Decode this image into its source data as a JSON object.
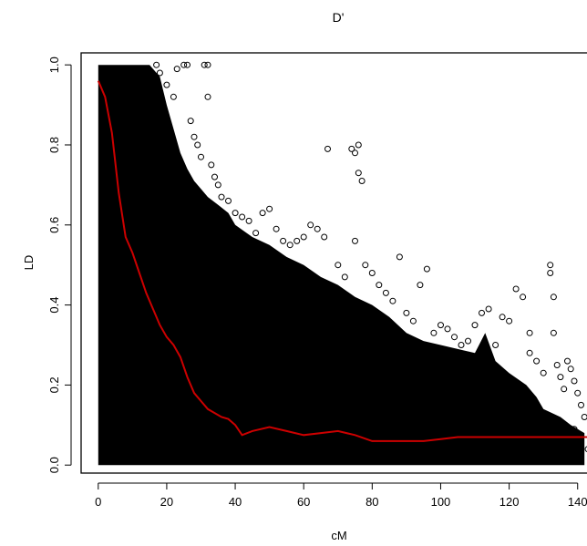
{
  "chart_data": {
    "type": "scatter",
    "title": "D'",
    "xlabel": "cM",
    "ylabel": "LD",
    "xlim": [
      -5,
      143
    ],
    "ylim": [
      -0.02,
      1.03
    ],
    "x_ticks": [
      0,
      20,
      40,
      60,
      80,
      100,
      120,
      140
    ],
    "x_tick_labels": [
      "0",
      "20",
      "40",
      "60",
      "80",
      "100",
      "120",
      "140"
    ],
    "y_ticks": [
      0.0,
      0.2,
      0.4,
      0.6,
      0.8,
      1.0
    ],
    "y_tick_labels": [
      "0.0",
      "0.2",
      "0.4",
      "0.6",
      "0.8",
      "1.0"
    ],
    "grid": false,
    "point_color": "#000000",
    "line_color": "#cc0000",
    "scatter_envelope": [
      [
        0,
        1.0
      ],
      [
        15,
        1.0
      ],
      [
        18,
        0.97
      ],
      [
        20,
        0.9
      ],
      [
        22,
        0.84
      ],
      [
        24,
        0.78
      ],
      [
        26,
        0.74
      ],
      [
        28,
        0.71
      ],
      [
        30,
        0.69
      ],
      [
        32,
        0.67
      ],
      [
        35,
        0.65
      ],
      [
        38,
        0.63
      ],
      [
        40,
        0.6
      ],
      [
        45,
        0.57
      ],
      [
        50,
        0.55
      ],
      [
        55,
        0.52
      ],
      [
        60,
        0.5
      ],
      [
        65,
        0.47
      ],
      [
        70,
        0.45
      ],
      [
        75,
        0.42
      ],
      [
        80,
        0.4
      ],
      [
        85,
        0.37
      ],
      [
        90,
        0.33
      ],
      [
        95,
        0.31
      ],
      [
        100,
        0.3
      ],
      [
        105,
        0.29
      ],
      [
        110,
        0.28
      ],
      [
        113,
        0.33
      ],
      [
        116,
        0.26
      ],
      [
        120,
        0.23
      ],
      [
        125,
        0.2
      ],
      [
        128,
        0.17
      ],
      [
        130,
        0.14
      ],
      [
        135,
        0.12
      ],
      [
        138,
        0.1
      ],
      [
        142,
        0.08
      ]
    ],
    "outlier_points": [
      [
        17,
        1.0
      ],
      [
        18,
        0.98
      ],
      [
        20,
        0.95
      ],
      [
        22,
        0.92
      ],
      [
        23,
        0.99
      ],
      [
        25,
        1.0
      ],
      [
        26,
        1.0
      ],
      [
        27,
        0.86
      ],
      [
        28,
        0.82
      ],
      [
        29,
        0.8
      ],
      [
        30,
        0.77
      ],
      [
        31,
        1.0
      ],
      [
        32,
        1.0
      ],
      [
        32,
        0.92
      ],
      [
        33,
        0.75
      ],
      [
        34,
        0.72
      ],
      [
        35,
        0.7
      ],
      [
        36,
        0.67
      ],
      [
        38,
        0.66
      ],
      [
        40,
        0.63
      ],
      [
        42,
        0.62
      ],
      [
        44,
        0.61
      ],
      [
        46,
        0.58
      ],
      [
        48,
        0.63
      ],
      [
        50,
        0.64
      ],
      [
        52,
        0.59
      ],
      [
        54,
        0.56
      ],
      [
        56,
        0.55
      ],
      [
        58,
        0.56
      ],
      [
        60,
        0.57
      ],
      [
        62,
        0.6
      ],
      [
        64,
        0.59
      ],
      [
        66,
        0.57
      ],
      [
        67,
        0.79
      ],
      [
        70,
        0.5
      ],
      [
        72,
        0.47
      ],
      [
        74,
        0.79
      ],
      [
        75,
        0.78
      ],
      [
        76,
        0.8
      ],
      [
        76,
        0.73
      ],
      [
        77,
        0.71
      ],
      [
        75,
        0.56
      ],
      [
        78,
        0.5
      ],
      [
        80,
        0.48
      ],
      [
        82,
        0.45
      ],
      [
        84,
        0.43
      ],
      [
        86,
        0.41
      ],
      [
        88,
        0.52
      ],
      [
        90,
        0.38
      ],
      [
        92,
        0.36
      ],
      [
        94,
        0.45
      ],
      [
        96,
        0.49
      ],
      [
        98,
        0.33
      ],
      [
        100,
        0.35
      ],
      [
        102,
        0.34
      ],
      [
        104,
        0.32
      ],
      [
        106,
        0.3
      ],
      [
        108,
        0.31
      ],
      [
        110,
        0.35
      ],
      [
        112,
        0.38
      ],
      [
        114,
        0.39
      ],
      [
        116,
        0.3
      ],
      [
        118,
        0.37
      ],
      [
        120,
        0.36
      ],
      [
        122,
        0.44
      ],
      [
        124,
        0.42
      ],
      [
        126,
        0.33
      ],
      [
        126,
        0.28
      ],
      [
        128,
        0.26
      ],
      [
        130,
        0.23
      ],
      [
        132,
        0.5
      ],
      [
        132,
        0.48
      ],
      [
        133,
        0.42
      ],
      [
        133,
        0.33
      ],
      [
        134,
        0.25
      ],
      [
        135,
        0.22
      ],
      [
        136,
        0.19
      ],
      [
        137,
        0.26
      ],
      [
        138,
        0.24
      ],
      [
        139,
        0.21
      ],
      [
        140,
        0.18
      ],
      [
        141,
        0.15
      ],
      [
        142,
        0.12
      ],
      [
        139,
        0.09
      ],
      [
        141,
        0.06
      ],
      [
        143,
        0.04
      ]
    ],
    "series": [
      {
        "type": "line",
        "x": [
          0,
          2,
          4,
          6,
          8,
          10,
          12,
          14,
          16,
          18,
          20,
          22,
          24,
          26,
          28,
          30,
          32,
          34,
          36,
          38,
          40,
          42,
          45,
          50,
          55,
          60,
          65,
          70,
          75,
          80,
          85,
          90,
          95,
          100,
          105,
          110,
          115,
          120,
          125,
          130,
          135,
          140,
          143
        ],
        "y": [
          0.96,
          0.92,
          0.83,
          0.68,
          0.57,
          0.53,
          0.48,
          0.43,
          0.39,
          0.35,
          0.32,
          0.3,
          0.27,
          0.22,
          0.18,
          0.16,
          0.14,
          0.13,
          0.12,
          0.115,
          0.1,
          0.075,
          0.085,
          0.095,
          0.085,
          0.075,
          0.08,
          0.085,
          0.075,
          0.06,
          0.06,
          0.06,
          0.06,
          0.065,
          0.07,
          0.07,
          0.07,
          0.07,
          0.07,
          0.07,
          0.07,
          0.07,
          0.07
        ]
      }
    ]
  }
}
